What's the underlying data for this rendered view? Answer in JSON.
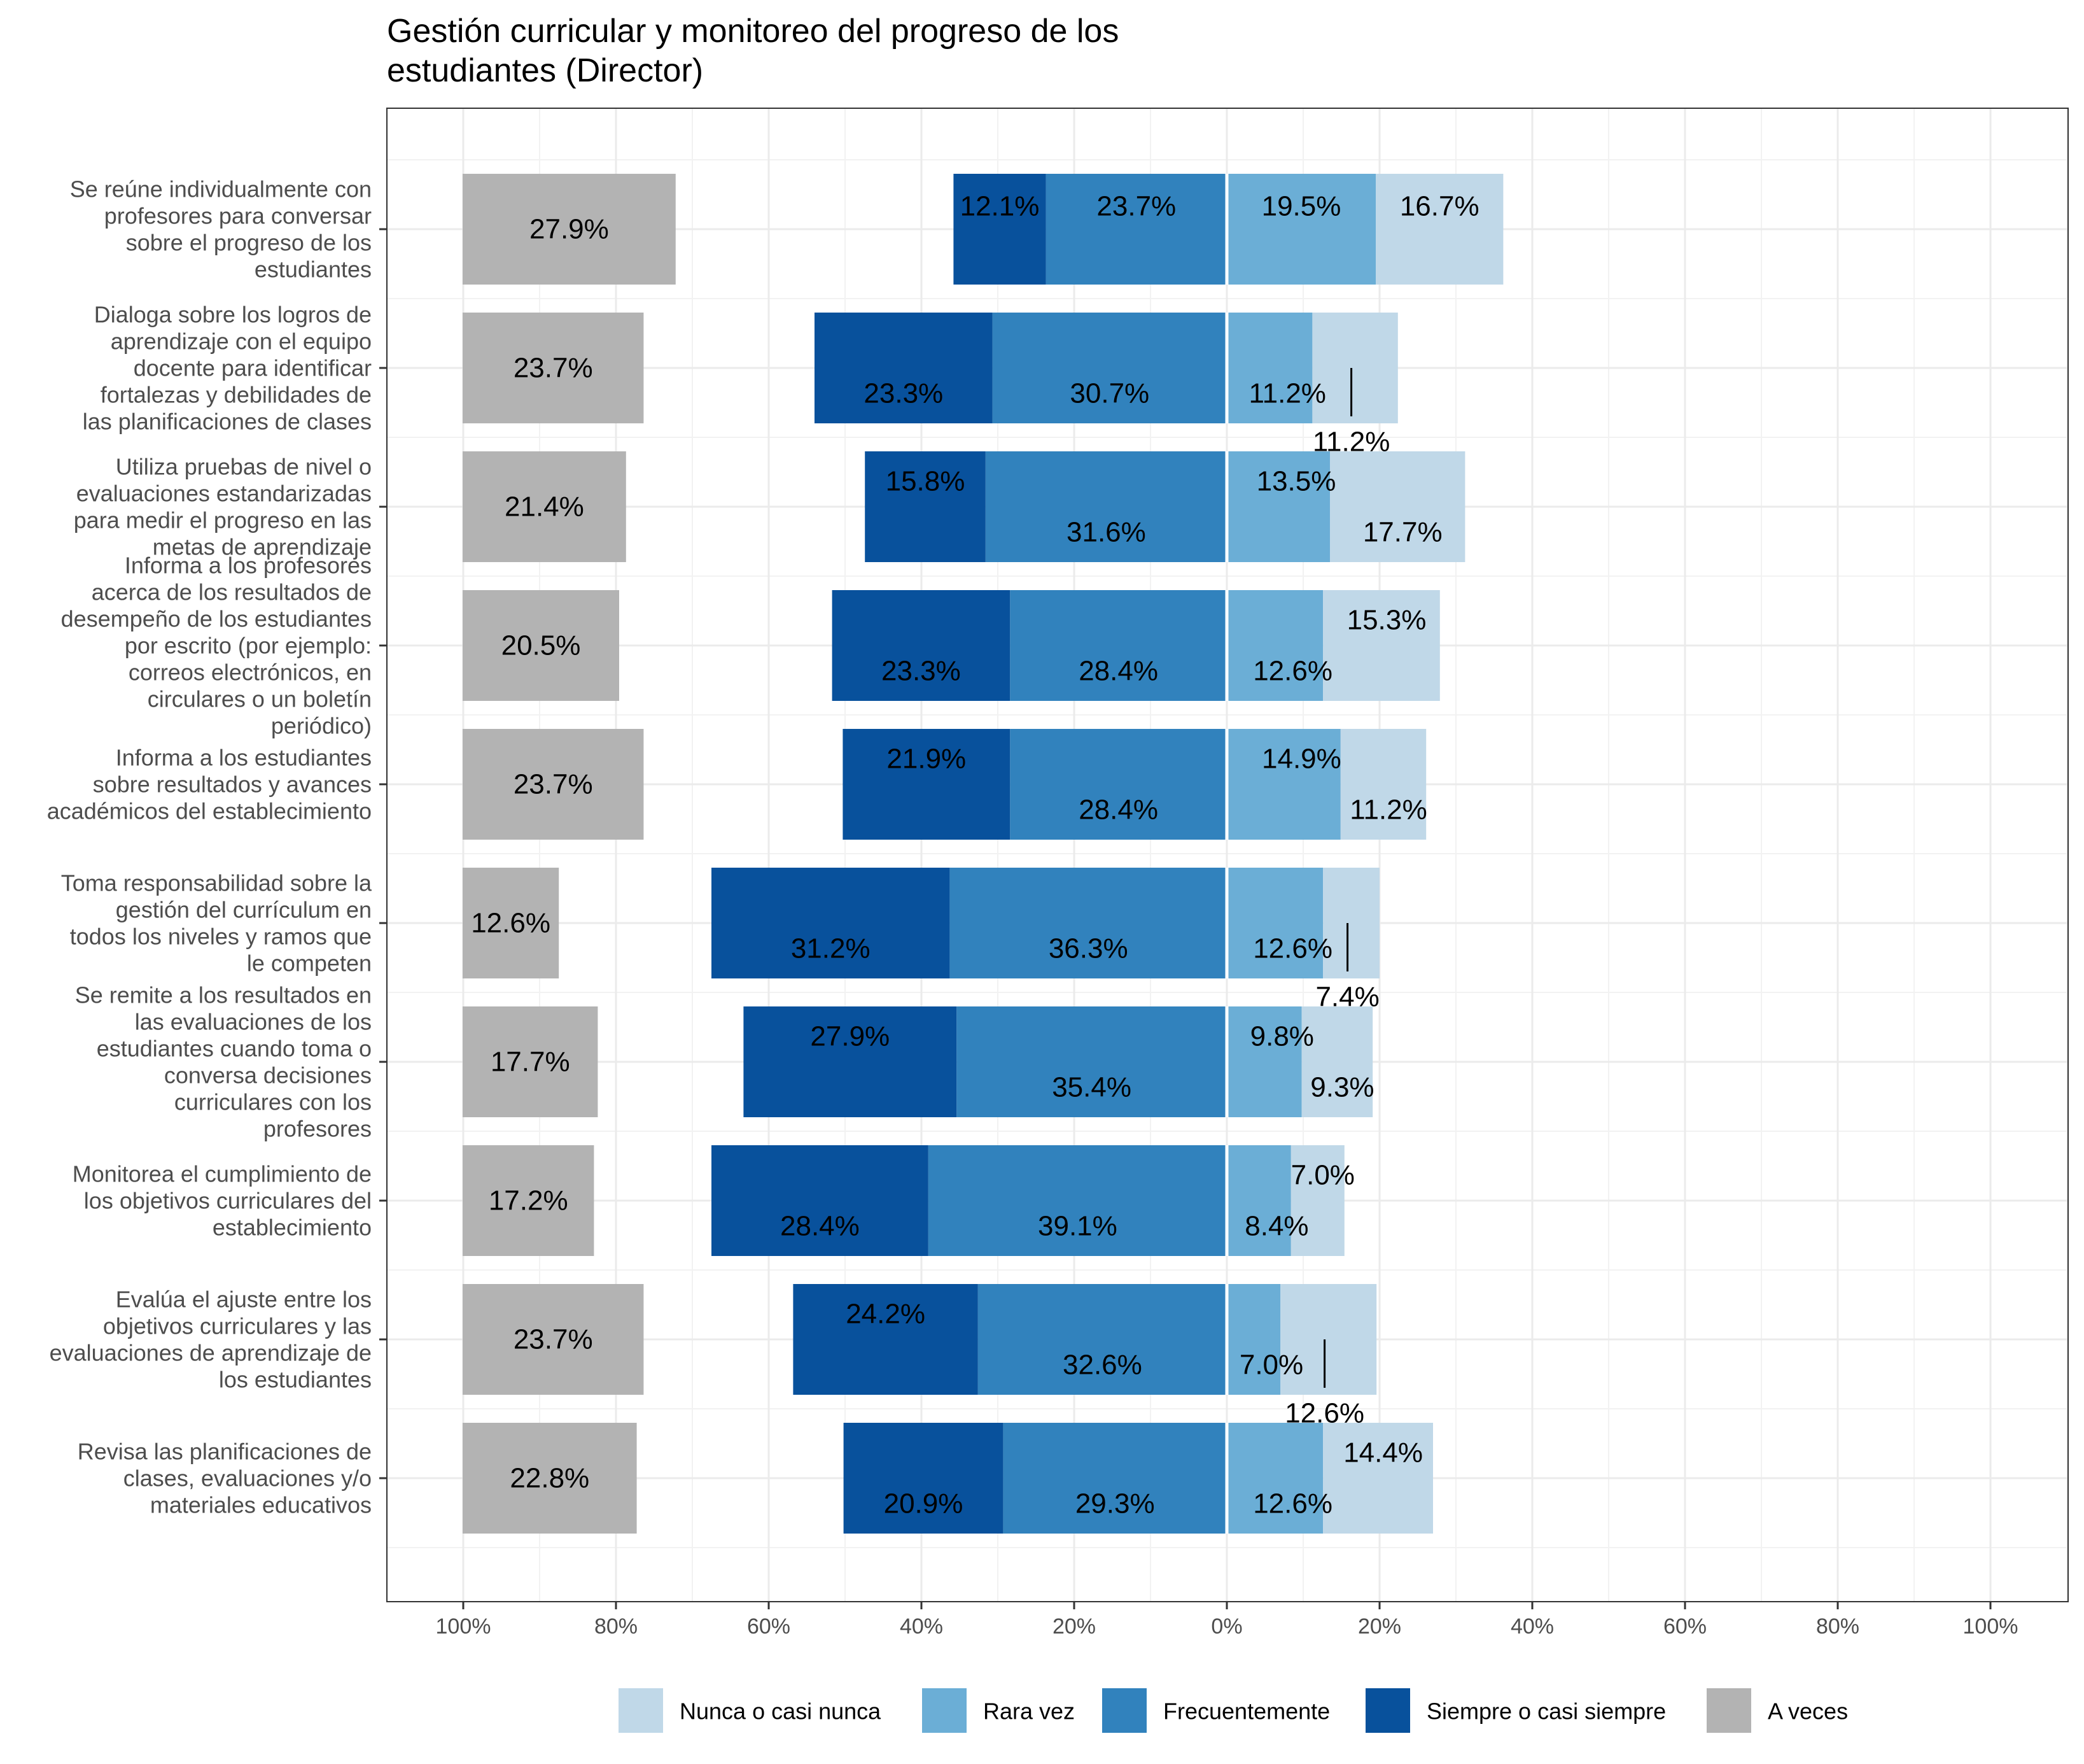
{
  "chart_data": {
    "type": "bar",
    "title": "Gestión curricular y monitoreo del progreso de los estudiantes (Director)",
    "title_lines": [
      "Gestión curricular y monitoreo del progreso de los",
      "estudiantes (Director)"
    ],
    "orientation": "horizontal",
    "stacking": "diverging",
    "xlim": [
      -100,
      100
    ],
    "x_ticks": [
      -100,
      -80,
      -60,
      -40,
      -20,
      0,
      20,
      40,
      60,
      80,
      100
    ],
    "x_tick_labels": [
      "100%",
      "80%",
      "60%",
      "40%",
      "20%",
      "0%",
      "20%",
      "40%",
      "60%",
      "80%",
      "100%"
    ],
    "grid": true,
    "legend_position": "bottom",
    "categories": [
      {
        "label": "Se reúne individualmente con profesores para conversar sobre el progreso de los estudiantes",
        "lines": [
          "Se reúne individualmente con",
          "profesores para conversar",
          "sobre el progreso de los",
          "estudiantes"
        ]
      },
      {
        "label": "Dialoga sobre los logros de aprendizaje con el equipo docente para identificar fortalezas y debilidades de las planificaciones de clases",
        "lines": [
          "Dialoga sobre los logros de",
          "aprendizaje con el equipo",
          "docente para identificar",
          "fortalezas y debilidades de",
          "las planificaciones de clases"
        ]
      },
      {
        "label": "Utiliza pruebas de nivel o evaluaciones estandarizadas para medir el progreso en las metas de aprendizaje",
        "lines": [
          "Utiliza pruebas de nivel o",
          "evaluaciones estandarizadas",
          "para medir el progreso en las",
          "metas de aprendizaje"
        ]
      },
      {
        "label": "Informa a los profesores acerca de los resultados de desempeño de los estudiantes por escrito (por ejemplo: correos electrónicos, en circulares o un boletín periódico)",
        "lines": [
          "Informa a los profesores",
          "acerca de los resultados de",
          "desempeño de los estudiantes",
          "por escrito (por ejemplo:",
          "correos electrónicos, en",
          "circulares o un boletín",
          "periódico)"
        ]
      },
      {
        "label": "Informa a los estudiantes sobre resultados y avances académicos del establecimiento",
        "lines": [
          "Informa a los estudiantes",
          "sobre resultados y avances",
          "académicos del establecimiento"
        ]
      },
      {
        "label": "Toma responsabilidad sobre la gestión del currículum en todos los niveles y ramos que le competen",
        "lines": [
          "Toma responsabilidad sobre la",
          "gestión del currículum en",
          "todos los niveles y ramos que",
          "le competen"
        ]
      },
      {
        "label": "Se remite a los resultados en las evaluaciones de los estudiantes cuando toma o conversa decisiones curriculares con los profesores",
        "lines": [
          "Se remite a los resultados en",
          "las evaluaciones de los",
          "estudiantes cuando toma o",
          "conversa decisiones",
          "curriculares con los",
          "profesores"
        ]
      },
      {
        "label": "Monitorea el cumplimiento de los objetivos curriculares del establecimiento",
        "lines": [
          "Monitorea el cumplimiento de",
          "los objetivos curriculares del",
          "establecimiento"
        ]
      },
      {
        "label": "Evalúa el ajuste entre los objetivos curriculares y las evaluaciones de aprendizaje de los estudiantes",
        "lines": [
          "Evalúa el ajuste entre los",
          "objetivos curriculares y las",
          "evaluaciones de aprendizaje de",
          "los estudiantes"
        ]
      },
      {
        "label": "Revisa las planificaciones de clases, evaluaciones y/o materiales educativos",
        "lines": [
          "Revisa las planificaciones de",
          "clases, evaluaciones y/o",
          "materiales educativos"
        ]
      }
    ],
    "series": [
      {
        "name": "Nunca o casi nunca",
        "color": "#c0d8e8",
        "side": "positive",
        "values": [
          16.7,
          11.2,
          17.7,
          15.3,
          11.2,
          7.4,
          9.3,
          7.0,
          12.6,
          14.4
        ]
      },
      {
        "name": "Rara vez",
        "color": "#6baed6",
        "side": "positive",
        "values": [
          19.5,
          11.2,
          13.5,
          12.6,
          14.9,
          12.6,
          9.8,
          8.4,
          7.0,
          12.6
        ]
      },
      {
        "name": "Frecuentemente",
        "color": "#3182bd",
        "side": "negative",
        "values": [
          23.7,
          30.7,
          31.6,
          28.4,
          28.4,
          36.3,
          35.4,
          39.1,
          32.6,
          29.3
        ]
      },
      {
        "name": "Siempre o casi siempre",
        "color": "#08519c",
        "side": "negative",
        "values": [
          12.1,
          23.3,
          15.8,
          23.3,
          21.9,
          31.2,
          27.9,
          28.4,
          24.2,
          20.9
        ]
      },
      {
        "name": "A veces",
        "color": "#b3b3b3",
        "side": "left-block",
        "values": [
          27.9,
          23.7,
          21.4,
          20.5,
          23.7,
          12.6,
          17.7,
          17.2,
          23.7,
          22.8
        ]
      }
    ],
    "legend": [
      "Nunca o casi nunca",
      "Rara vez",
      "Frecuentemente",
      "Siempre o casi siempre",
      "A veces"
    ]
  }
}
